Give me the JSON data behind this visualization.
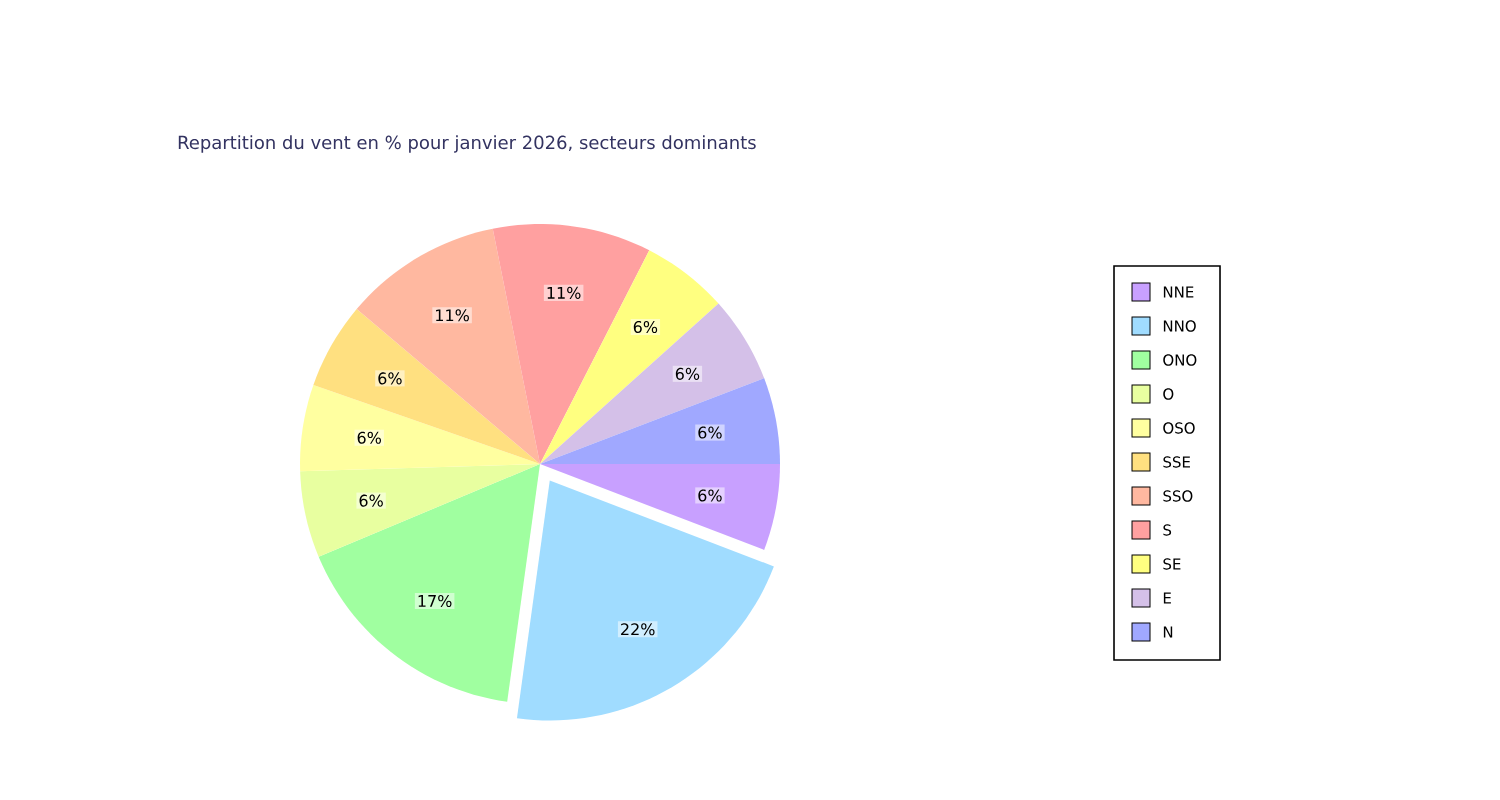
{
  "chart_data": {
    "type": "pie",
    "title": "Repartition du vent en % pour janvier 2026, secteurs dominants",
    "categories": [
      "NNE",
      "NNO",
      "ONO",
      "O",
      "OSO",
      "SSE",
      "SSO",
      "S",
      "SE",
      "E",
      "N"
    ],
    "values": [
      6,
      22,
      17,
      6,
      6,
      6,
      11,
      11,
      6,
      6,
      6
    ],
    "value_labels": [
      "6%",
      "22%",
      "17%",
      "6%",
      "6%",
      "6%",
      "11%",
      "11%",
      "6%",
      "6%",
      "6%"
    ],
    "colors": [
      "#c8a0ff",
      "#a0dcff",
      "#a0ffa0",
      "#e8ffa0",
      "#ffffa0",
      "#ffe080",
      "#ffb8a0",
      "#ffa0a0",
      "#ffff80",
      "#d4c0e8",
      "#a0a8ff"
    ],
    "legend": "right"
  }
}
